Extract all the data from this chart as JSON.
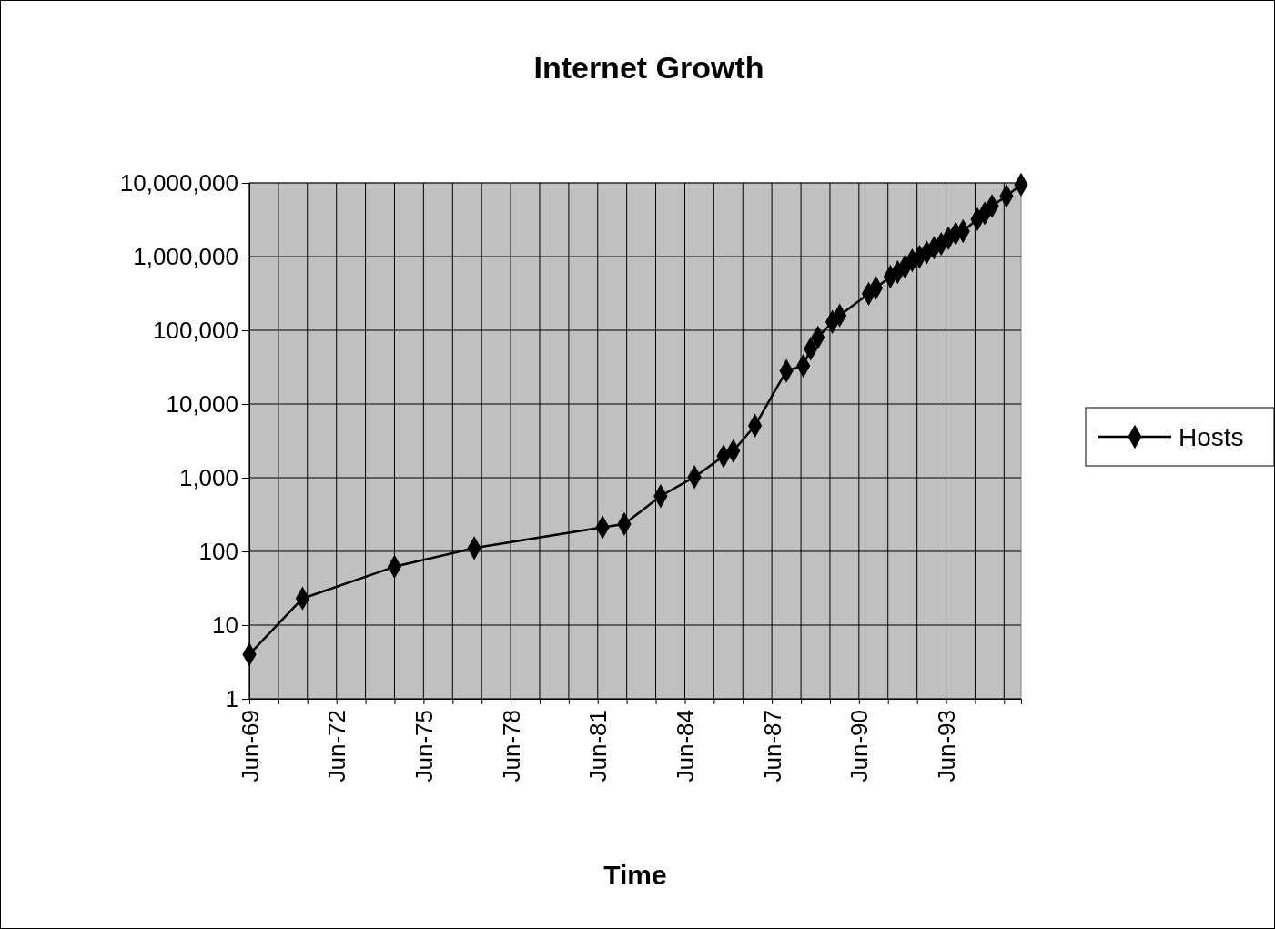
{
  "chart_data": {
    "type": "line",
    "title": "Internet Growth",
    "xlabel": "Time",
    "x": [
      "1969-06",
      "1971-04",
      "1974-06",
      "1977-03",
      "1981-08",
      "1982-05",
      "1983-08",
      "1984-10",
      "1985-10",
      "1986-02",
      "1986-11",
      "1987-12",
      "1988-07",
      "1988-10",
      "1989-01",
      "1989-07",
      "1989-10",
      "1990-10",
      "1991-01",
      "1991-07",
      "1991-10",
      "1992-01",
      "1992-04",
      "1992-07",
      "1992-10",
      "1993-01",
      "1993-04",
      "1993-07",
      "1993-10",
      "1994-01",
      "1994-07",
      "1994-10",
      "1995-01",
      "1995-07",
      "1996-01"
    ],
    "series": [
      {
        "name": "Hosts",
        "color": "#000000",
        "values": [
          4,
          23,
          62,
          111,
          213,
          235,
          562,
          1024,
          1961,
          2308,
          5089,
          28174,
          33000,
          56000,
          80000,
          130000,
          159000,
          313000,
          376000,
          535000,
          617000,
          727000,
          890000,
          992000,
          1136000,
          1313000,
          1486000,
          1776000,
          2056000,
          2217000,
          3212000,
          3864000,
          4852000,
          6642000,
          9472000
        ]
      }
    ],
    "log": "y",
    "grid": true,
    "marker": "diamond",
    "line_style": "solid",
    "legend": "right",
    "xlim": [
      "1969-06",
      "1996-01"
    ],
    "xticks": [
      {
        "value": "1969-06",
        "label": "Jun-69"
      },
      {
        "value": "1970-06",
        "label": null
      },
      {
        "value": "1971-06",
        "label": null
      },
      {
        "value": "1972-06",
        "label": "Jun-72"
      },
      {
        "value": "1973-06",
        "label": null
      },
      {
        "value": "1974-06",
        "label": null
      },
      {
        "value": "1975-06",
        "label": "Jun-75"
      },
      {
        "value": "1976-06",
        "label": null
      },
      {
        "value": "1977-06",
        "label": null
      },
      {
        "value": "1978-06",
        "label": "Jun-78"
      },
      {
        "value": "1979-06",
        "label": null
      },
      {
        "value": "1980-06",
        "label": null
      },
      {
        "value": "1981-06",
        "label": "Jun-81"
      },
      {
        "value": "1982-06",
        "label": null
      },
      {
        "value": "1983-06",
        "label": null
      },
      {
        "value": "1984-06",
        "label": "Jun-84"
      },
      {
        "value": "1985-06",
        "label": null
      },
      {
        "value": "1986-06",
        "label": null
      },
      {
        "value": "1987-06",
        "label": "Jun-87"
      },
      {
        "value": "1988-06",
        "label": null
      },
      {
        "value": "1989-06",
        "label": null
      },
      {
        "value": "1990-06",
        "label": "Jun-90"
      },
      {
        "value": "1991-06",
        "label": null
      },
      {
        "value": "1992-06",
        "label": null
      },
      {
        "value": "1993-06",
        "label": "Jun-93"
      },
      {
        "value": "1994-06",
        "label": null
      },
      {
        "value": "1995-06",
        "label": null
      }
    ],
    "ylim": [
      1,
      10000000
    ],
    "yticks": [
      1,
      10,
      100,
      {
        "value": 1000,
        "label": "1,000"
      },
      {
        "value": 10000,
        "label": "10,000"
      },
      {
        "value": 100000,
        "label": "100,000"
      },
      {
        "value": 1000000,
        "label": "1,000,000"
      },
      {
        "value": 10000000,
        "label": "10,000,000"
      }
    ]
  }
}
